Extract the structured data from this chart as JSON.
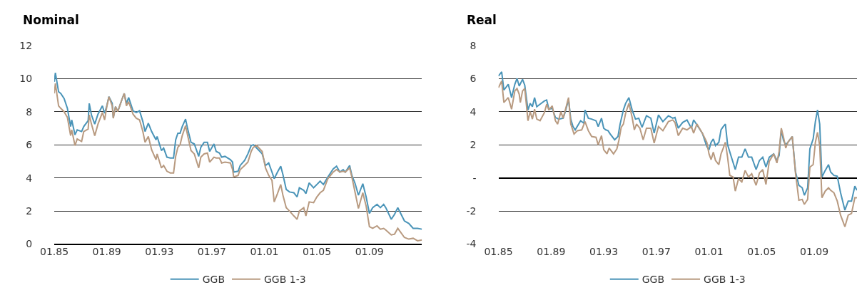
{
  "chart_data": [
    {
      "type": "line",
      "title": "Nominal",
      "xlim": [
        "1985-01",
        "2013-01"
      ],
      "ylim": [
        0,
        12
      ],
      "yticks": [
        0,
        2,
        4,
        6,
        8,
        10,
        12
      ],
      "xticks": [
        {
          "value": "1985-01",
          "label": "01.85"
        },
        {
          "value": "1989-01",
          "label": "01.89"
        },
        {
          "value": "1993-01",
          "label": "01.93"
        },
        {
          "value": "1997-01",
          "label": "01.97"
        },
        {
          "value": "2001-01",
          "label": "01.01"
        },
        {
          "value": "2005-01",
          "label": "01.05"
        },
        {
          "value": "2009-01",
          "label": "01.09"
        }
      ],
      "grid": "y",
      "legend": "bottom",
      "line_style": "solid",
      "x": [
        "1985-01",
        "1985-02",
        "1985-05",
        "1985-07",
        "1985-10",
        "1986-01",
        "1986-04",
        "1986-05",
        "1986-08",
        "1986-10",
        "1987-02",
        "1987-04",
        "1987-08",
        "1987-09",
        "1987-11",
        "1988-02",
        "1988-05",
        "1988-09",
        "1988-11",
        "1989-01",
        "1989-03",
        "1989-06",
        "1989-07",
        "1989-09",
        "1989-11",
        "1990-03",
        "1990-05",
        "1990-07",
        "1990-09",
        "1991-01",
        "1991-04",
        "1991-07",
        "1991-10",
        "1991-12",
        "1992-03",
        "1992-06",
        "1992-10",
        "1992-11",
        "1993-03",
        "1993-05",
        "1993-08",
        "1993-11",
        "1994-02",
        "1994-04",
        "1994-06",
        "1994-08",
        "1994-10",
        "1995-01",
        "1995-03",
        "1995-06",
        "1995-09",
        "1996-01",
        "1996-03",
        "1996-06",
        "1996-09",
        "1996-11",
        "1997-03",
        "1997-05",
        "1997-08",
        "1997-10",
        "1998-01",
        "1998-06",
        "1998-08",
        "1998-09",
        "1999-01",
        "1999-03",
        "1999-07",
        "1999-10",
        "2000-01",
        "2000-03",
        "2000-06",
        "2000-11",
        "2001-02",
        "2001-05",
        "2001-08",
        "2001-10",
        "2002-01",
        "2002-04",
        "2002-06",
        "2002-09",
        "2002-12",
        "2003-04",
        "2003-07",
        "2003-09",
        "2004-01",
        "2004-03",
        "2004-06",
        "2004-10",
        "2005-01",
        "2005-04",
        "2005-07",
        "2005-11",
        "2006-04",
        "2006-07",
        "2006-10",
        "2007-01",
        "2007-03",
        "2007-07",
        "2007-09",
        "2007-12",
        "2008-03",
        "2008-07",
        "2008-10",
        "2009-01",
        "2009-04",
        "2009-08",
        "2009-11",
        "2010-02",
        "2010-04",
        "2010-09",
        "2010-12",
        "2011-03",
        "2011-09",
        "2012-01",
        "2012-05",
        "2012-09",
        "2013-01"
      ],
      "series": [
        {
          "name": "GGB",
          "color": "#4a94b8",
          "values": [
            9.8,
            10.35,
            9.2,
            9.1,
            8.8,
            8.2,
            7.1,
            7.5,
            6.6,
            6.9,
            6.8,
            7.1,
            7.45,
            8.5,
            7.8,
            7.25,
            7.85,
            8.35,
            7.9,
            8.35,
            8.9,
            8.5,
            7.65,
            8.3,
            8.0,
            8.75,
            9.1,
            8.5,
            8.85,
            8.05,
            7.95,
            8.05,
            7.4,
            6.8,
            7.3,
            6.8,
            6.3,
            6.5,
            5.65,
            5.8,
            5.25,
            5.2,
            5.2,
            6.3,
            6.7,
            6.7,
            7.1,
            7.55,
            6.95,
            6.15,
            6.05,
            5.3,
            5.85,
            6.15,
            6.15,
            5.6,
            6.05,
            5.6,
            5.5,
            5.25,
            5.3,
            5.1,
            4.95,
            4.35,
            4.4,
            4.75,
            5.05,
            5.45,
            5.95,
            6.0,
            5.8,
            5.45,
            4.75,
            4.9,
            4.35,
            3.95,
            4.35,
            4.7,
            4.2,
            3.3,
            3.15,
            3.1,
            2.85,
            3.4,
            3.25,
            3.05,
            3.7,
            3.4,
            3.6,
            3.8,
            3.6,
            4.05,
            4.55,
            4.7,
            4.35,
            4.5,
            4.35,
            4.75,
            4.15,
            3.65,
            2.95,
            3.65,
            2.85,
            1.85,
            2.2,
            2.4,
            2.2,
            2.4,
            2.2,
            1.5,
            1.8,
            2.2,
            1.4,
            1.25,
            0.95,
            0.95,
            0.9
          ]
        },
        {
          "name": "GGB 1-3",
          "color": "#b89a80",
          "values": [
            9.1,
            9.7,
            8.35,
            8.2,
            8.0,
            7.65,
            6.55,
            6.9,
            5.95,
            6.35,
            6.2,
            6.8,
            6.95,
            7.8,
            7.25,
            6.55,
            7.25,
            7.95,
            7.5,
            8.3,
            8.9,
            8.35,
            7.6,
            8.3,
            8.0,
            8.75,
            9.1,
            8.35,
            8.6,
            7.85,
            7.6,
            7.5,
            6.8,
            6.15,
            6.5,
            5.7,
            5.1,
            5.45,
            4.6,
            4.75,
            4.4,
            4.3,
            4.3,
            5.3,
            5.85,
            6.0,
            6.55,
            7.15,
            6.55,
            5.65,
            5.45,
            4.6,
            5.25,
            5.45,
            5.5,
            4.95,
            5.25,
            5.2,
            5.2,
            4.9,
            4.95,
            4.9,
            4.5,
            4.05,
            4.15,
            4.5,
            4.75,
            4.95,
            5.6,
            5.85,
            5.95,
            5.6,
            4.6,
            4.15,
            3.85,
            2.55,
            3.05,
            3.6,
            2.95,
            2.2,
            2.0,
            1.7,
            1.5,
            2.0,
            2.2,
            1.7,
            2.55,
            2.5,
            2.85,
            3.1,
            3.25,
            3.95,
            4.35,
            4.5,
            4.35,
            4.4,
            4.35,
            4.6,
            4.05,
            3.1,
            2.15,
            3.1,
            2.3,
            1.05,
            0.95,
            1.1,
            0.9,
            0.95,
            0.85,
            0.55,
            0.6,
            0.95,
            0.4,
            0.3,
            0.35,
            0.2,
            0.25
          ]
        }
      ]
    },
    {
      "type": "line",
      "title": "Real",
      "xlim": [
        "1985-01",
        "2012-04"
      ],
      "ylim": [
        -4,
        8
      ],
      "yticks": [
        -4,
        -2,
        {
          "value": 0,
          "label": "-"
        },
        2,
        4,
        6,
        8
      ],
      "xticks": [
        {
          "value": "1985-01",
          "label": "01.85"
        },
        {
          "value": "1989-01",
          "label": "01.89"
        },
        {
          "value": "1993-01",
          "label": "01.93"
        },
        {
          "value": "1997-01",
          "label": "01.97"
        },
        {
          "value": "2001-01",
          "label": "01.01"
        },
        {
          "value": "2005-01",
          "label": "01.05"
        },
        {
          "value": "2009-01",
          "label": "01.09"
        }
      ],
      "grid": "y",
      "legend": "bottom",
      "line_style": "solid",
      "series": [
        {
          "name": "GGB",
          "color": "#4a94b8",
          "x": [
            "1985-01",
            "1985-04",
            "1985-06",
            "1985-10",
            "1986-01",
            "1986-04",
            "1986-06",
            "1986-08",
            "1986-11",
            "1987-01",
            "1987-04",
            "1987-06",
            "1987-08",
            "1987-10",
            "1987-12",
            "1988-03",
            "1988-07",
            "1988-09",
            "1988-11",
            "1989-02",
            "1989-05",
            "1989-08",
            "1989-12",
            "1990-02",
            "1990-05",
            "1990-07",
            "1990-09",
            "1990-11",
            "1991-04",
            "1991-07",
            "1991-08",
            "1991-11",
            "1992-02",
            "1992-06",
            "1992-08",
            "1992-11",
            "1993-01",
            "1993-03",
            "1993-05",
            "1993-07",
            "1993-11",
            "1994-02",
            "1994-04",
            "1994-07",
            "1994-09",
            "1994-12",
            "1995-03",
            "1995-06",
            "1995-09",
            "1995-12",
            "1996-04",
            "1996-08",
            "1996-11",
            "1997-03",
            "1997-07",
            "1997-12",
            "1998-04",
            "1998-06",
            "1998-09",
            "1999-01",
            "1999-05",
            "1999-09",
            "1999-11",
            "2000-02",
            "2000-07",
            "2000-11",
            "2001-01",
            "2001-03",
            "2001-05",
            "2001-07",
            "2001-10",
            "2001-12",
            "2002-02",
            "2002-04",
            "2002-06",
            "2002-09",
            "2003-01",
            "2003-04",
            "2003-07",
            "2003-10",
            "2004-01",
            "2004-04",
            "2004-08",
            "2004-11",
            "2005-02",
            "2005-05",
            "2005-08",
            "2005-12",
            "2006-03",
            "2006-05",
            "2006-07",
            "2006-09",
            "2006-11",
            "2007-01",
            "2007-05",
            "2007-08",
            "2007-11",
            "2008-02",
            "2008-04",
            "2008-07",
            "2008-09",
            "2008-12",
            "2009-02",
            "2009-04",
            "2009-06",
            "2009-08",
            "2009-11",
            "2010-02",
            "2010-04",
            "2010-07",
            "2010-10",
            "2011-01",
            "2011-05",
            "2011-08",
            "2011-11",
            "2012-02",
            "2012-04"
          ],
          "values": [
            6.15,
            6.4,
            5.3,
            5.65,
            4.85,
            5.65,
            6.0,
            5.55,
            5.95,
            5.6,
            4.1,
            4.5,
            4.3,
            4.85,
            4.3,
            4.45,
            4.65,
            4.7,
            4.15,
            4.2,
            3.65,
            3.55,
            3.6,
            4.0,
            4.75,
            3.55,
            3.1,
            2.9,
            3.45,
            3.3,
            4.1,
            3.6,
            3.55,
            3.45,
            3.1,
            3.6,
            3.0,
            2.9,
            2.85,
            2.65,
            2.3,
            2.5,
            3.25,
            4.1,
            4.5,
            4.85,
            4.1,
            3.55,
            3.6,
            3.05,
            3.75,
            3.6,
            2.7,
            3.8,
            3.4,
            3.75,
            3.6,
            3.65,
            3.0,
            3.35,
            3.5,
            3.0,
            3.5,
            3.2,
            2.7,
            1.9,
            1.7,
            2.15,
            2.35,
            1.95,
            2.15,
            2.9,
            3.1,
            3.25,
            2.0,
            1.35,
            0.5,
            1.25,
            1.25,
            1.75,
            1.25,
            1.25,
            0.5,
            1.05,
            1.25,
            0.65,
            1.25,
            1.45,
            1.05,
            1.35,
            2.9,
            2.25,
            2.0,
            2.15,
            2.5,
            0.35,
            -0.45,
            -0.6,
            -1.05,
            -0.6,
            1.75,
            2.35,
            3.4,
            4.1,
            3.25,
            0.05,
            0.45,
            0.8,
            0.35,
            0.15,
            0.1,
            -0.9,
            -1.95,
            -1.4,
            -1.4,
            -0.5,
            -0.75
          ]
        },
        {
          "name": "GGB 1-3",
          "color": "#b89a80",
          "x": [
            "1985-01",
            "1985-04",
            "1985-06",
            "1985-10",
            "1986-01",
            "1986-04",
            "1986-06",
            "1986-08",
            "1986-09",
            "1986-11",
            "1987-01",
            "1987-04",
            "1987-06",
            "1987-08",
            "1987-10",
            "1987-12",
            "1988-03",
            "1988-07",
            "1988-09",
            "1988-11",
            "1989-02",
            "1989-05",
            "1989-07",
            "1989-10",
            "1989-12",
            "1990-02",
            "1990-05",
            "1990-07",
            "1990-10",
            "1991-01",
            "1991-05",
            "1991-08",
            "1991-11",
            "1992-02",
            "1992-06",
            "1992-08",
            "1992-11",
            "1993-01",
            "1993-04",
            "1993-06",
            "1993-10",
            "1994-01",
            "1994-03",
            "1994-05",
            "1994-07",
            "1994-09",
            "1994-12",
            "1995-03",
            "1995-05",
            "1995-07",
            "1995-10",
            "1996-01",
            "1996-04",
            "1996-08",
            "1996-11",
            "1997-03",
            "1997-07",
            "1997-12",
            "1998-04",
            "1998-06",
            "1998-09",
            "1999-01",
            "1999-05",
            "1999-09",
            "1999-11",
            "2000-02",
            "2000-07",
            "2000-11",
            "2001-01",
            "2001-03",
            "2001-05",
            "2001-07",
            "2001-10",
            "2001-12",
            "2002-02",
            "2002-04",
            "2002-06",
            "2002-08",
            "2002-11",
            "2003-01",
            "2003-04",
            "2003-07",
            "2003-10",
            "2004-01",
            "2004-04",
            "2004-08",
            "2004-11",
            "2005-02",
            "2005-05",
            "2005-08",
            "2005-12",
            "2006-03",
            "2006-05",
            "2006-07",
            "2006-09",
            "2006-11",
            "2007-01",
            "2007-05",
            "2007-08",
            "2007-11",
            "2008-02",
            "2008-04",
            "2008-07",
            "2008-09",
            "2008-12",
            "2009-02",
            "2009-04",
            "2009-06",
            "2009-08",
            "2009-11",
            "2010-02",
            "2010-04",
            "2010-07",
            "2010-10",
            "2011-01",
            "2011-05",
            "2011-08",
            "2011-11",
            "2012-02",
            "2012-04"
          ],
          "values": [
            5.45,
            5.85,
            4.55,
            4.85,
            4.15,
            5.25,
            5.4,
            5.05,
            4.55,
            5.25,
            5.4,
            3.45,
            4.0,
            3.55,
            4.15,
            3.55,
            3.45,
            3.95,
            4.45,
            4.1,
            4.35,
            3.45,
            3.25,
            4.0,
            3.6,
            4.1,
            4.85,
            3.25,
            2.65,
            2.85,
            2.9,
            3.4,
            2.85,
            2.5,
            2.45,
            2.0,
            2.55,
            1.7,
            1.45,
            1.8,
            1.45,
            1.75,
            2.3,
            3.05,
            3.25,
            3.9,
            4.5,
            3.65,
            2.9,
            3.25,
            3.0,
            2.3,
            3.0,
            3.0,
            2.1,
            3.1,
            2.85,
            3.4,
            3.5,
            3.35,
            2.55,
            3.0,
            2.9,
            3.1,
            2.7,
            3.25,
            2.7,
            2.15,
            1.45,
            1.1,
            1.55,
            1.05,
            0.8,
            1.45,
            1.8,
            2.15,
            1.25,
            0.15,
            0.05,
            -0.8,
            -0.05,
            -0.25,
            0.45,
            0.05,
            0.25,
            -0.45,
            0.3,
            0.5,
            -0.4,
            1.0,
            1.45,
            0.9,
            1.6,
            3.0,
            2.45,
            1.8,
            2.15,
            2.5,
            0.25,
            -1.35,
            -1.3,
            -1.6,
            -1.3,
            0.65,
            0.8,
            2.15,
            2.75,
            1.95,
            -1.2,
            -0.8,
            -0.6,
            -0.75,
            -0.9,
            -1.4,
            -2.25,
            -2.95,
            -2.25,
            -2.15,
            -1.2,
            -1.2
          ]
        }
      ]
    }
  ]
}
